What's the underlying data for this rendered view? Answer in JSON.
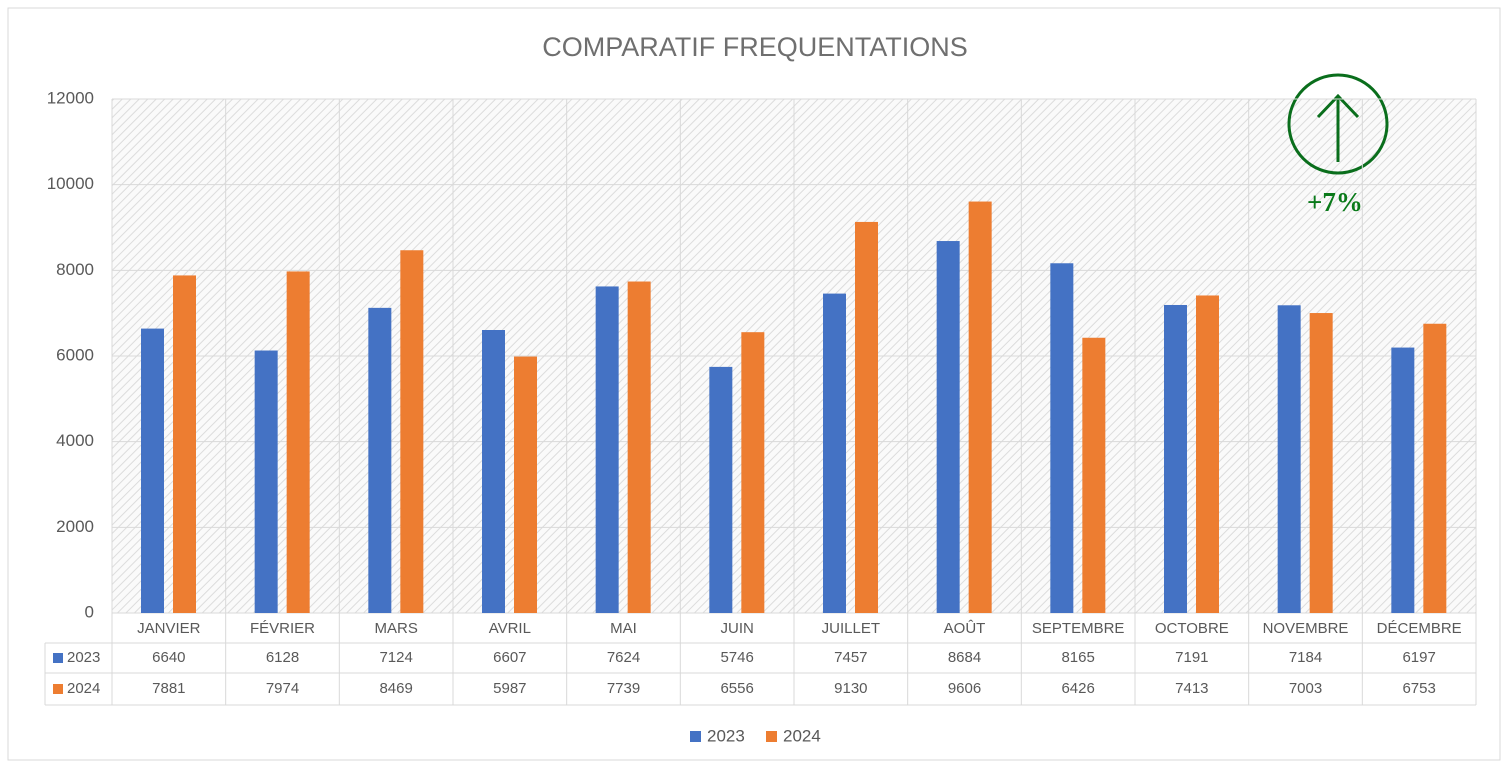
{
  "chart_data": {
    "type": "bar",
    "title": "COMPARATIF FREQUENTATIONS",
    "categories": [
      "JANVIER",
      "FÉVRIER",
      "MARS",
      "AVRIL",
      "MAI",
      "JUIN",
      "JUILLET",
      "AOÛT",
      "SEPTEMBRE",
      "OCTOBRE",
      "NOVEMBRE",
      "DÉCEMBRE"
    ],
    "series": [
      {
        "name": "2023",
        "color": "#4472c4",
        "values": [
          6640,
          6128,
          7124,
          6607,
          7624,
          5746,
          7457,
          8684,
          8165,
          7191,
          7184,
          6197
        ]
      },
      {
        "name": "2024",
        "color": "#ed7d31",
        "values": [
          7881,
          7974,
          8469,
          5987,
          7739,
          6556,
          9130,
          9606,
          6426,
          7413,
          7003,
          6753
        ]
      }
    ],
    "ylim": [
      0,
      12000
    ],
    "yticks": [
      0,
      2000,
      4000,
      6000,
      8000,
      10000,
      12000
    ],
    "grid": true,
    "annotation": "+7%"
  }
}
